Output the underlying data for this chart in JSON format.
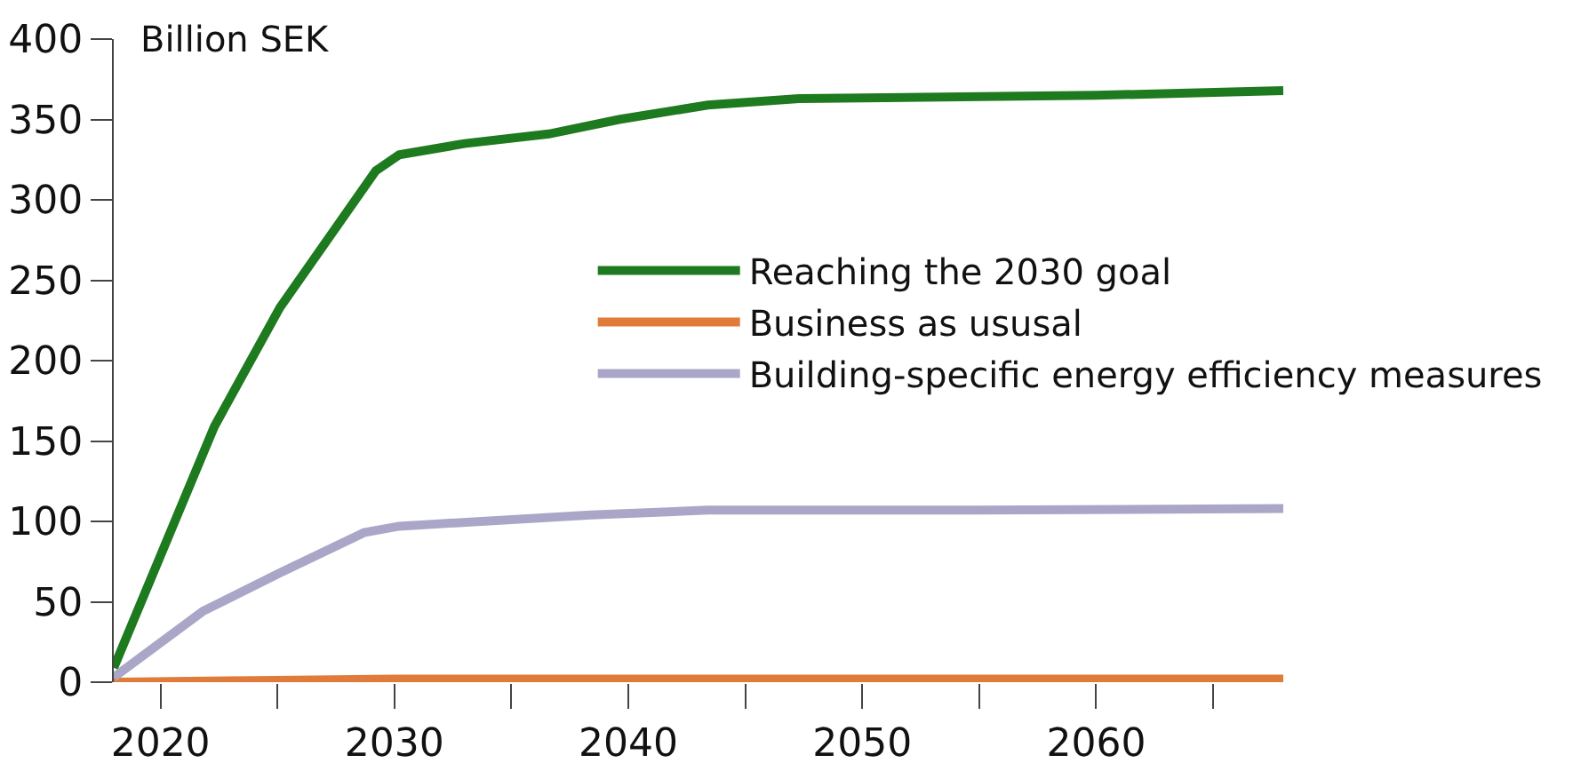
{
  "chart_data": {
    "type": "line",
    "ylabel": "Billion SEK",
    "xlim": [
      2018,
      2068
    ],
    "ylim": [
      0,
      400
    ],
    "xticks": [
      2020,
      {
        "value": 2025,
        "label": null
      },
      2030,
      {
        "value": 2035,
        "label": null
      },
      2040,
      {
        "value": 2045,
        "label": null
      },
      2050,
      {
        "value": 2055,
        "label": null
      },
      2060,
      {
        "value": 2065,
        "label": null
      }
    ],
    "yticks": [
      0,
      50,
      100,
      150,
      200,
      250,
      300,
      350,
      400
    ],
    "grid": false,
    "legend": "right",
    "marker": "none",
    "line_style": "solid",
    "series": [
      {
        "name": "Reaching the 2030 goal",
        "color": "#1e7a1e",
        "x": [
          2018,
          2022.3,
          2025.1,
          2029.2,
          2030.2,
          2033,
          2036.6,
          2039.6,
          2043.4,
          2047.3,
          2060,
          2068
        ],
        "values": [
          9,
          159,
          233,
          318,
          328,
          335,
          341,
          350,
          359,
          363,
          365,
          368
        ]
      },
      {
        "name": "Business as ususal",
        "color": "#e07b39",
        "x": [
          2018,
          2024,
          2030,
          2068
        ],
        "values": [
          0,
          1,
          2,
          2
        ]
      },
      {
        "name": "Building-specific energy efficiency measures",
        "color": "#a9a6c8",
        "x": [
          2018,
          2021.8,
          2025.1,
          2028.7,
          2030.2,
          2038.4,
          2043.4,
          2055,
          2068
        ],
        "values": [
          3,
          44,
          68,
          93,
          97,
          104,
          107,
          107,
          108
        ]
      }
    ]
  }
}
